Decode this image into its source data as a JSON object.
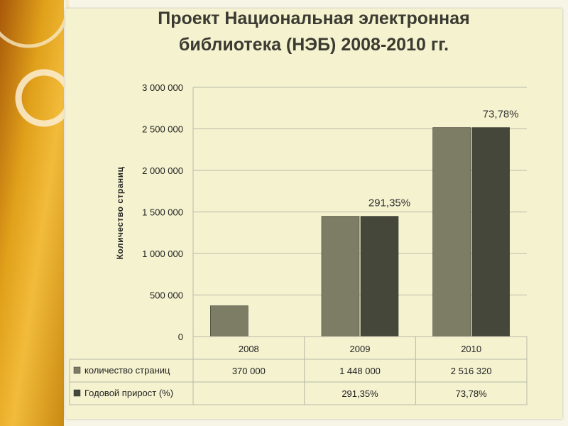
{
  "colors": {
    "series_pages": "#7d7d66",
    "series_growth": "#45473b",
    "grid": "#b9b9a8",
    "text": "#222222"
  },
  "chart_data": {
    "type": "bar",
    "title": "Проект Национальная  электронная библиотека (НЭБ) 2008-2010 гг.",
    "title_lines": [
      "Проект Национальная  электронная",
      "библиотека (НЭБ) 2008-2010 гг."
    ],
    "ylabel": "Количество  страниц",
    "ylim": [
      0,
      3000000
    ],
    "yticks": [
      0,
      500000,
      1000000,
      1500000,
      2000000,
      2500000,
      3000000
    ],
    "ytick_labels": [
      "0",
      "500 000",
      "1 000 000",
      "1 500 000",
      "2 000 000",
      "2 500 000",
      "3 000 000"
    ],
    "categories": [
      "2008",
      "2009",
      "2010"
    ],
    "grid": true,
    "series": [
      {
        "name": "количество страниц",
        "values": [
          370000,
          1448000,
          2516320
        ],
        "table_labels": [
          "370 000",
          "1 448 000",
          "2 516 320"
        ]
      },
      {
        "name": "Годовой прирост (%)",
        "values": [
          null,
          1448000,
          2516320
        ],
        "table_labels": [
          "",
          "291,35%",
          "73,78%"
        ],
        "annotations": [
          "",
          "291,35%",
          "73,78%"
        ]
      }
    ]
  }
}
